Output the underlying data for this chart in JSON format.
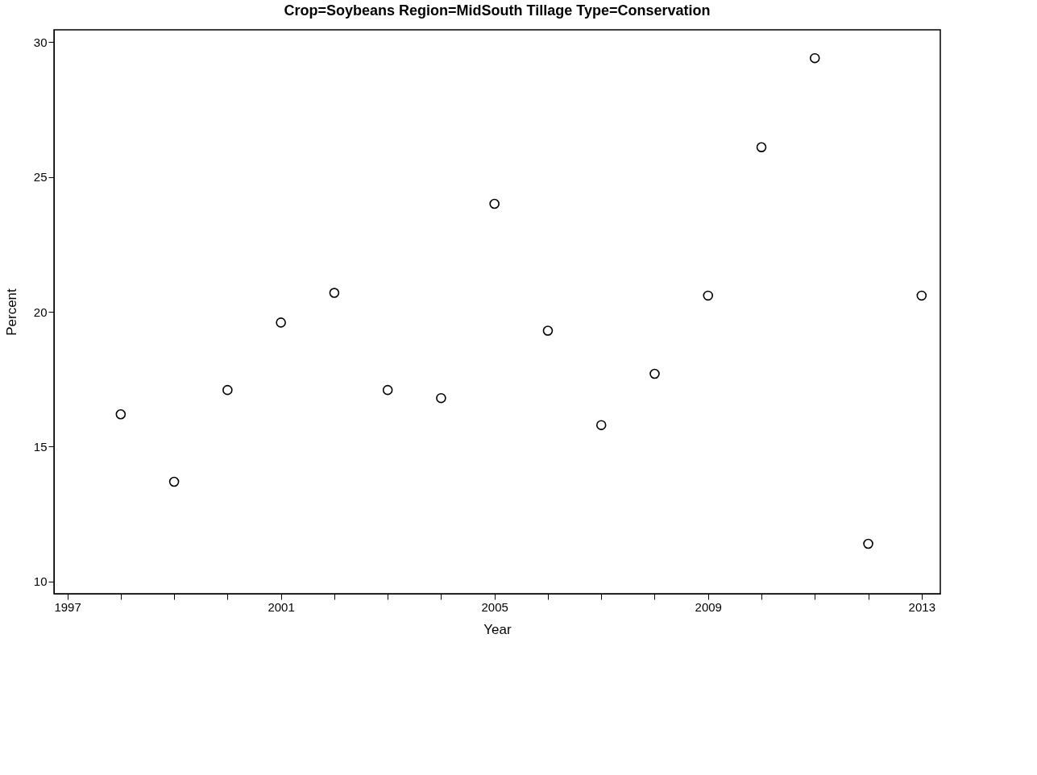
{
  "chart_data": {
    "type": "scatter",
    "title": "Crop=Soybeans Region=MidSouth Tillage Type=Conservation",
    "xlabel": "Year",
    "ylabel": "Percent",
    "x": [
      1998,
      1999,
      2000,
      2001,
      2002,
      2003,
      2004,
      2005,
      2006,
      2007,
      2008,
      2009,
      2010,
      2011,
      2012,
      2013
    ],
    "series": [
      {
        "color": "#000000",
        "values": [
          16.2,
          13.7,
          17.1,
          19.6,
          20.7,
          17.1,
          16.8,
          24.0,
          19.3,
          15.8,
          17.7,
          20.6,
          26.1,
          29.4,
          11.4,
          20.6
        ]
      }
    ],
    "xlim": [
      1996.75,
      2013.35
    ],
    "ylim": [
      9.55,
      30.45
    ],
    "xticks": [
      1997,
      {
        "value": 1998,
        "label": null
      },
      {
        "value": 1999,
        "label": null
      },
      {
        "value": 2000,
        "label": null
      },
      2001,
      {
        "value": 2002,
        "label": null
      },
      {
        "value": 2003,
        "label": null
      },
      {
        "value": 2004,
        "label": null
      },
      2005,
      {
        "value": 2006,
        "label": null
      },
      {
        "value": 2007,
        "label": null
      },
      {
        "value": 2008,
        "label": null
      },
      2009,
      {
        "value": 2010,
        "label": null
      },
      {
        "value": 2011,
        "label": null
      },
      {
        "value": 2012,
        "label": null
      },
      2013
    ],
    "yticks": [
      10,
      15,
      20,
      25,
      30
    ],
    "marker": "circle",
    "grid": false
  }
}
